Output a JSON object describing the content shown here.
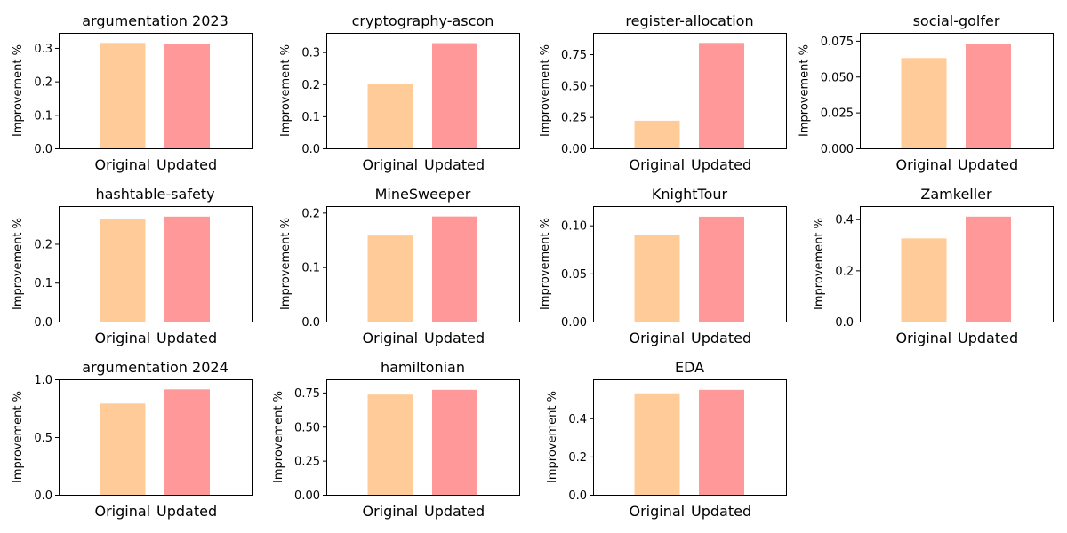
{
  "colors": {
    "original": "#ffcc99",
    "updated": "#ff9999"
  },
  "chart_data": [
    {
      "type": "bar",
      "title": "argumentation 2023",
      "categories": [
        "Original",
        "Updated"
      ],
      "values": [
        0.315,
        0.313
      ],
      "ylabel": "Improvement %",
      "ylim": [
        0,
        0.345
      ],
      "yticks": [
        "0.0",
        "0.1",
        "0.2",
        "0.3"
      ]
    },
    {
      "type": "bar",
      "title": "cryptography-ascon",
      "categories": [
        "Original",
        "Updated"
      ],
      "values": [
        0.2,
        0.328
      ],
      "ylabel": "Improvement %",
      "ylim": [
        0,
        0.36
      ],
      "yticks": [
        "0.0",
        "0.1",
        "0.2",
        "0.3"
      ]
    },
    {
      "type": "bar",
      "title": "register-allocation",
      "categories": [
        "Original",
        "Updated"
      ],
      "values": [
        0.22,
        0.84
      ],
      "ylabel": "Improvement %",
      "ylim": [
        0,
        0.92
      ],
      "yticks": [
        "0.00",
        "0.25",
        "0.50",
        "0.75"
      ]
    },
    {
      "type": "bar",
      "title": "social-golfer",
      "categories": [
        "Original",
        "Updated"
      ],
      "values": [
        0.063,
        0.073
      ],
      "ylabel": "Improvement %",
      "ylim": [
        0,
        0.0805
      ],
      "yticks": [
        "0.000",
        "0.025",
        "0.050",
        "0.075"
      ]
    },
    {
      "type": "bar",
      "title": "hashtable-safety",
      "categories": [
        "Original",
        "Updated"
      ],
      "values": [
        0.265,
        0.27
      ],
      "ylabel": "Improvement %",
      "ylim": [
        0,
        0.297
      ],
      "yticks": [
        "0.0",
        "0.1",
        "0.2"
      ]
    },
    {
      "type": "bar",
      "title": "MineSweeper",
      "categories": [
        "Original",
        "Updated"
      ],
      "values": [
        0.158,
        0.193
      ],
      "ylabel": "Improvement %",
      "ylim": [
        0,
        0.212
      ],
      "yticks": [
        "0.0",
        "0.1",
        "0.2"
      ]
    },
    {
      "type": "bar",
      "title": "KnightTour",
      "categories": [
        "Original",
        "Updated"
      ],
      "values": [
        0.09,
        0.109
      ],
      "ylabel": "Improvement %",
      "ylim": [
        0,
        0.12
      ],
      "yticks": [
        "0.00",
        "0.05",
        "0.10"
      ]
    },
    {
      "type": "bar",
      "title": "Zamkeller",
      "categories": [
        "Original",
        "Updated"
      ],
      "values": [
        0.325,
        0.41
      ],
      "ylabel": "Improvement %",
      "ylim": [
        0,
        0.451
      ],
      "yticks": [
        "0.0",
        "0.2",
        "0.4"
      ]
    },
    {
      "type": "bar",
      "title": "argumentation 2024",
      "categories": [
        "Original",
        "Updated"
      ],
      "values": [
        0.79,
        0.913
      ],
      "ylabel": "Improvement %",
      "ylim": [
        0,
        1.0
      ],
      "yticks": [
        "0.0",
        "0.5",
        "1.0"
      ]
    },
    {
      "type": "bar",
      "title": "hamiltonian",
      "categories": [
        "Original",
        "Updated"
      ],
      "values": [
        0.735,
        0.77
      ],
      "ylabel": "Improvement %",
      "ylim": [
        0,
        0.847
      ],
      "yticks": [
        "0.00",
        "0.25",
        "0.50",
        "0.75"
      ]
    },
    {
      "type": "bar",
      "title": "EDA",
      "categories": [
        "Original",
        "Updated"
      ],
      "values": [
        0.53,
        0.548
      ],
      "ylabel": "Improvement %",
      "ylim": [
        0,
        0.603
      ],
      "yticks": [
        "0.0",
        "0.2",
        "0.4"
      ]
    }
  ]
}
